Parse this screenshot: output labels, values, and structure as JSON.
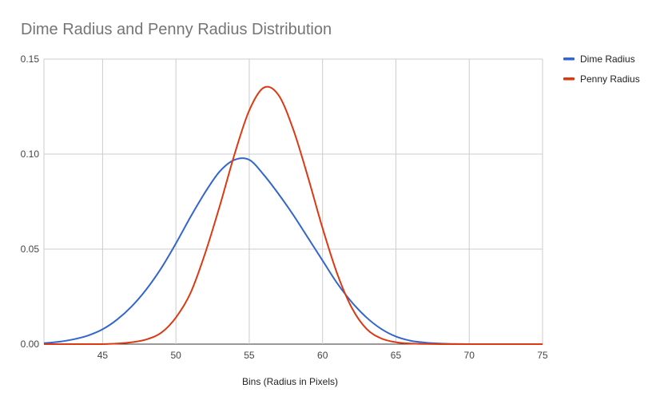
{
  "chart_data": {
    "type": "line",
    "title": "Dime Radius and Penny Radius Distribution",
    "xlabel": "Bins (Radius in Pixels)",
    "ylabel": "",
    "xlim": [
      41,
      75
    ],
    "ylim": [
      0,
      0.15
    ],
    "x_ticks": [
      "45",
      "50",
      "55",
      "60",
      "65",
      "70",
      "75"
    ],
    "y_ticks": [
      "0.00",
      "0.05",
      "0.10",
      "0.15"
    ],
    "grid": true,
    "legend_position": "right",
    "series": [
      {
        "name": "Dime Radius",
        "color": "#3366cc",
        "x": [
          41,
          42,
          43,
          44,
          45,
          46,
          47,
          48,
          49,
          50,
          51,
          52,
          53,
          54,
          55,
          56,
          57,
          58,
          59,
          60,
          61,
          62,
          63,
          64,
          65,
          66,
          67,
          68,
          69,
          70,
          71,
          72,
          73,
          74,
          75
        ],
        "values": [
          0.0005,
          0.0012,
          0.0025,
          0.0045,
          0.0078,
          0.013,
          0.02,
          0.029,
          0.04,
          0.053,
          0.067,
          0.08,
          0.091,
          0.097,
          0.097,
          0.089,
          0.079,
          0.068,
          0.056,
          0.044,
          0.032,
          0.022,
          0.014,
          0.008,
          0.004,
          0.0018,
          0.0008,
          0.0003,
          0.0001,
          0.0,
          0.0,
          0.0,
          0.0,
          0.0,
          0.0
        ]
      },
      {
        "name": "Penny Radius",
        "color": "#dc3912",
        "x": [
          41,
          42,
          43,
          44,
          45,
          46,
          47,
          48,
          49,
          50,
          51,
          52,
          53,
          54,
          55,
          56,
          57,
          58,
          59,
          60,
          61,
          62,
          63,
          64,
          65,
          66,
          67,
          68,
          69,
          70,
          71,
          72,
          73,
          74,
          75
        ],
        "values": [
          0.0,
          0.0,
          0.0,
          0.0,
          0.0,
          0.0003,
          0.001,
          0.0025,
          0.006,
          0.014,
          0.027,
          0.048,
          0.073,
          0.1,
          0.123,
          0.135,
          0.131,
          0.113,
          0.088,
          0.061,
          0.037,
          0.019,
          0.008,
          0.003,
          0.001,
          0.0003,
          0.0001,
          0.0,
          0.0,
          0.0,
          0.0,
          0.0,
          0.0,
          0.0,
          0.0
        ]
      }
    ]
  }
}
